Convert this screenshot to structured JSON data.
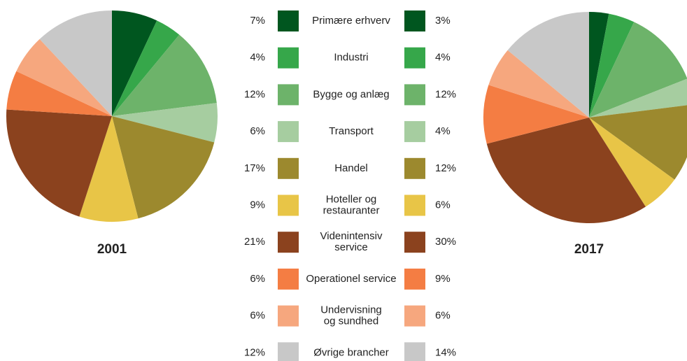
{
  "chart_data": [
    {
      "type": "pie",
      "title": "2001",
      "categories": [
        "Primære erhverv",
        "Industri",
        "Bygge og anlæg",
        "Transport",
        "Handel",
        "Hoteller og\nrestauranter",
        "Videnintensiv\nservice",
        "Operationel service",
        "Undervisning\nog sundhed",
        "Øvrige brancher"
      ],
      "values": [
        7,
        4,
        12,
        6,
        17,
        9,
        21,
        6,
        6,
        12
      ],
      "value_labels": [
        "7%",
        "4%",
        "12%",
        "6%",
        "17%",
        "9%",
        "21%",
        "6%",
        "6%",
        "12%"
      ],
      "colors": [
        "#00561f",
        "#36a74a",
        "#6db36a",
        "#a6cda0",
        "#9c892e",
        "#e8c547",
        "#8b421e",
        "#f47d43",
        "#f6a77e",
        "#c8c8c8"
      ]
    },
    {
      "type": "pie",
      "title": "2017",
      "categories": [
        "Primære erhverv",
        "Industri",
        "Bygge og anlæg",
        "Transport",
        "Handel",
        "Hoteller og\nrestauranter",
        "Videnintensiv\nservice",
        "Operationel service",
        "Undervisning\nog sundhed",
        "Øvrige brancher"
      ],
      "values": [
        3,
        4,
        12,
        4,
        12,
        6,
        30,
        9,
        6,
        14
      ],
      "value_labels": [
        "3%",
        "4%",
        "12%",
        "4%",
        "12%",
        "6%",
        "30%",
        "9%",
        "6%",
        "14%"
      ],
      "colors": [
        "#00561f",
        "#36a74a",
        "#6db36a",
        "#a6cda0",
        "#9c892e",
        "#e8c547",
        "#8b421e",
        "#f47d43",
        "#f6a77e",
        "#c8c8c8"
      ]
    }
  ]
}
